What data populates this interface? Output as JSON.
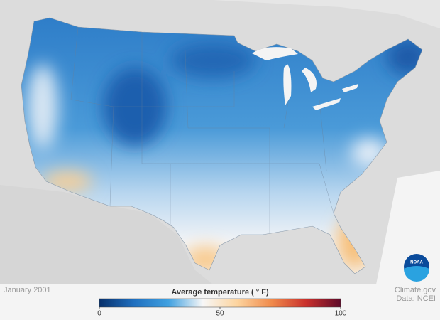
{
  "map": {
    "title": "January 2001"
  },
  "legend": {
    "title": "Average temperature ( ° F)",
    "range": [
      0,
      100
    ],
    "ticks": [
      0,
      50,
      100
    ],
    "colors": [
      "#08306b",
      "#1f6fbf",
      "#3fa0e0",
      "#f7f7f7",
      "#fdd49e",
      "#f08a4b",
      "#c9302c",
      "#5e0a2a"
    ]
  },
  "credits": {
    "source": "Climate.gov",
    "data": "Data: NCEI"
  },
  "logo": "NOAA"
}
